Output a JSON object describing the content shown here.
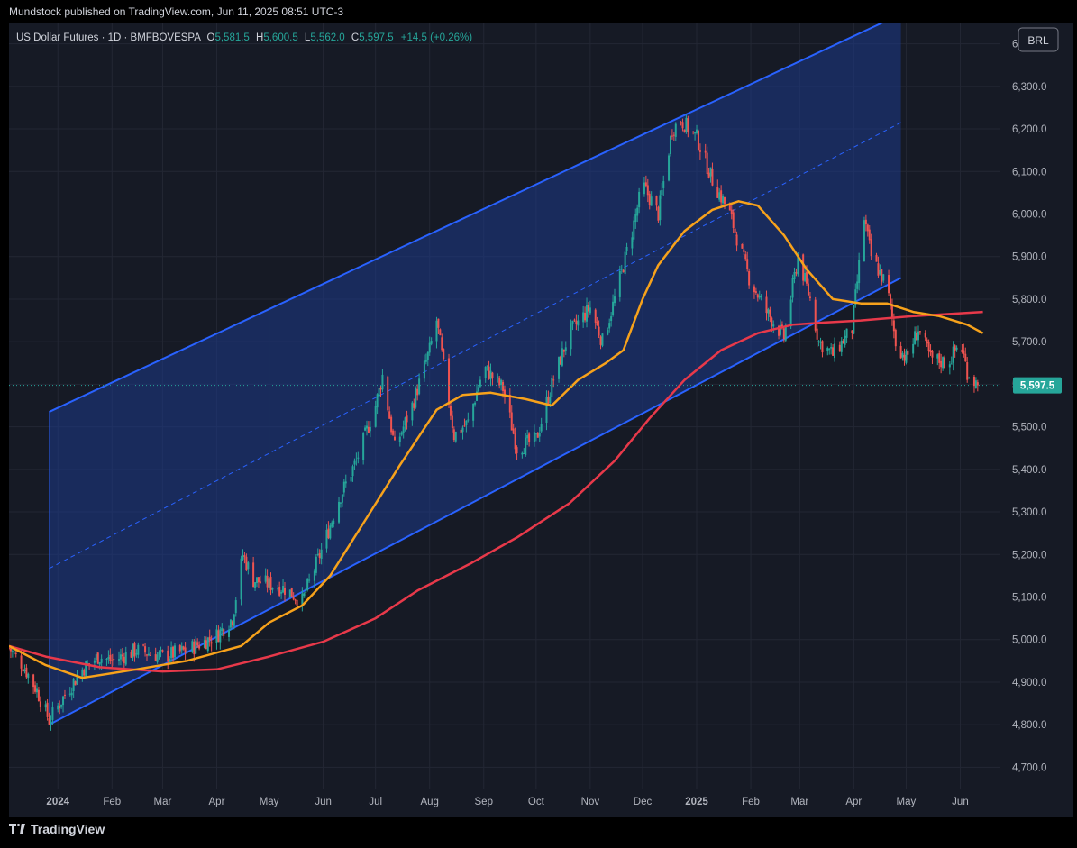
{
  "header": {
    "published": "Mundstock published on TradingView.com, Jun 11, 2025 08:51 UTC-3"
  },
  "legend": {
    "symbol": "US Dollar Futures · 1D · BMFBOVESPA",
    "o_label": "O",
    "o_value": "5,581.5",
    "h_label": "H",
    "h_value": "5,600.5",
    "l_label": "L",
    "l_value": "5,562.0",
    "c_label": "C",
    "c_value": "5,597.5",
    "change": "+14.5 (+0.26%)"
  },
  "currency_badge": "BRL",
  "last_price_label": "5,597.5",
  "footer": {
    "brand": "TradingView"
  },
  "colors": {
    "background": "#161a25",
    "up": "#26a69a",
    "down": "#ef5350",
    "ma_short": "#f7a21b",
    "ma_long": "#e8394a",
    "channel": "#2962ff",
    "channel_fill": "#1e3a8a"
  },
  "chart_data": {
    "type": "candlestick",
    "ylim": [
      4650,
      6450
    ],
    "y_ticks": [
      "4,700.0",
      "4,800.0",
      "4,900.0",
      "5,000.0",
      "5,100.0",
      "5,200.0",
      "5,300.0",
      "5,400.0",
      "5,500.0",
      "5,600.0",
      "5,700.0",
      "5,800.0",
      "5,900.0",
      "6,000.0",
      "6,100.0",
      "6,200.0",
      "6,300.0",
      "6,400.0"
    ],
    "y_tick_values": [
      4700,
      4800,
      4900,
      5000,
      5100,
      5200,
      5300,
      5400,
      5500,
      5600,
      5700,
      5800,
      5900,
      6000,
      6100,
      6200,
      6300,
      6400
    ],
    "x_ticks": [
      "2024",
      "Feb",
      "Mar",
      "Apr",
      "May",
      "Jun",
      "Jul",
      "Aug",
      "Sep",
      "Oct",
      "Nov",
      "Dec",
      "2025",
      "Feb",
      "Mar",
      "Apr",
      "May",
      "Jun"
    ],
    "x_tick_dates": [
      "2024-01-01",
      "2024-02-01",
      "2024-03-01",
      "2024-04-01",
      "2024-05-01",
      "2024-06-01",
      "2024-07-01",
      "2024-08-01",
      "2024-09-01",
      "2024-10-01",
      "2024-11-01",
      "2024-12-01",
      "2025-01-01",
      "2025-02-01",
      "2025-03-01",
      "2025-04-01",
      "2025-05-01",
      "2025-06-01"
    ],
    "x_range": [
      "2023-12-04",
      "2025-06-24"
    ],
    "close_path": [
      [
        "2023-12-04",
        4980
      ],
      [
        "2023-12-12",
        4940
      ],
      [
        "2023-12-20",
        4880
      ],
      [
        "2023-12-27",
        4810
      ],
      [
        "2024-01-05",
        4870
      ],
      [
        "2024-01-15",
        4930
      ],
      [
        "2024-01-24",
        4960
      ],
      [
        "2024-02-01",
        4950
      ],
      [
        "2024-02-15",
        4975
      ],
      [
        "2024-03-01",
        4960
      ],
      [
        "2024-03-15",
        4975
      ],
      [
        "2024-04-01",
        5010
      ],
      [
        "2024-04-10",
        5050
      ],
      [
        "2024-04-16",
        5200
      ],
      [
        "2024-04-22",
        5140
      ],
      [
        "2024-05-01",
        5130
      ],
      [
        "2024-05-10",
        5120
      ],
      [
        "2024-05-20",
        5090
      ],
      [
        "2024-06-01",
        5220
      ],
      [
        "2024-06-10",
        5330
      ],
      [
        "2024-06-20",
        5420
      ],
      [
        "2024-07-01",
        5550
      ],
      [
        "2024-07-05",
        5620
      ],
      [
        "2024-07-12",
        5450
      ],
      [
        "2024-07-22",
        5550
      ],
      [
        "2024-08-01",
        5680
      ],
      [
        "2024-08-05",
        5750
      ],
      [
        "2024-08-15",
        5480
      ],
      [
        "2024-08-23",
        5510
      ],
      [
        "2024-09-01",
        5640
      ],
      [
        "2024-09-12",
        5590
      ],
      [
        "2024-09-20",
        5450
      ],
      [
        "2024-10-01",
        5470
      ],
      [
        "2024-10-10",
        5600
      ],
      [
        "2024-10-20",
        5720
      ],
      [
        "2024-11-01",
        5780
      ],
      [
        "2024-11-08",
        5700
      ],
      [
        "2024-11-15",
        5800
      ],
      [
        "2024-11-25",
        5960
      ],
      [
        "2024-12-01",
        6070
      ],
      [
        "2024-12-10",
        6000
      ],
      [
        "2024-12-18",
        6200
      ],
      [
        "2024-12-23",
        6220
      ],
      [
        "2025-01-01",
        6180
      ],
      [
        "2025-01-10",
        6080
      ],
      [
        "2025-01-20",
        6000
      ],
      [
        "2025-01-31",
        5850
      ],
      [
        "2025-02-10",
        5770
      ],
      [
        "2025-02-20",
        5710
      ],
      [
        "2025-02-28",
        5900
      ],
      [
        "2025-03-07",
        5800
      ],
      [
        "2025-03-12",
        5700
      ],
      [
        "2025-03-20",
        5670
      ],
      [
        "2025-03-31",
        5730
      ],
      [
        "2025-04-07",
        5990
      ],
      [
        "2025-04-11",
        5900
      ],
      [
        "2025-04-20",
        5830
      ],
      [
        "2025-04-25",
        5700
      ],
      [
        "2025-05-01",
        5660
      ],
      [
        "2025-05-08",
        5730
      ],
      [
        "2025-05-15",
        5660
      ],
      [
        "2025-05-25",
        5650
      ],
      [
        "2025-06-01",
        5700
      ],
      [
        "2025-06-05",
        5630
      ],
      [
        "2025-06-11",
        5597.5
      ]
    ],
    "ma_short": [
      [
        "2023-12-04",
        4985
      ],
      [
        "2023-12-25",
        4940
      ],
      [
        "2024-01-15",
        4910
      ],
      [
        "2024-02-15",
        4930
      ],
      [
        "2024-03-15",
        4950
      ],
      [
        "2024-04-15",
        4985
      ],
      [
        "2024-05-01",
        5040
      ],
      [
        "2024-05-20",
        5080
      ],
      [
        "2024-06-05",
        5150
      ],
      [
        "2024-06-25",
        5280
      ],
      [
        "2024-07-15",
        5410
      ],
      [
        "2024-08-05",
        5540
      ],
      [
        "2024-08-20",
        5575
      ],
      [
        "2024-09-05",
        5580
      ],
      [
        "2024-09-25",
        5565
      ],
      [
        "2024-10-10",
        5550
      ],
      [
        "2024-10-25",
        5610
      ],
      [
        "2024-11-10",
        5650
      ],
      [
        "2024-11-20",
        5680
      ],
      [
        "2024-12-01",
        5800
      ],
      [
        "2024-12-10",
        5880
      ],
      [
        "2024-12-25",
        5960
      ],
      [
        "2025-01-10",
        6010
      ],
      [
        "2025-01-25",
        6030
      ],
      [
        "2025-02-05",
        6020
      ],
      [
        "2025-02-20",
        5950
      ],
      [
        "2025-03-05",
        5870
      ],
      [
        "2025-03-20",
        5800
      ],
      [
        "2025-04-05",
        5790
      ],
      [
        "2025-04-20",
        5790
      ],
      [
        "2025-05-05",
        5770
      ],
      [
        "2025-05-20",
        5760
      ],
      [
        "2025-06-05",
        5740
      ],
      [
        "2025-06-14",
        5720
      ]
    ],
    "ma_long": [
      [
        "2023-12-04",
        4985
      ],
      [
        "2023-12-25",
        4960
      ],
      [
        "2024-01-25",
        4935
      ],
      [
        "2024-03-01",
        4925
      ],
      [
        "2024-04-01",
        4930
      ],
      [
        "2024-05-01",
        4960
      ],
      [
        "2024-06-01",
        4995
      ],
      [
        "2024-07-01",
        5050
      ],
      [
        "2024-07-25",
        5115
      ],
      [
        "2024-08-25",
        5180
      ],
      [
        "2024-09-20",
        5240
      ],
      [
        "2024-10-20",
        5320
      ],
      [
        "2024-11-15",
        5420
      ],
      [
        "2024-12-05",
        5520
      ],
      [
        "2024-12-25",
        5610
      ],
      [
        "2025-01-15",
        5680
      ],
      [
        "2025-02-05",
        5720
      ],
      [
        "2025-02-25",
        5740
      ],
      [
        "2025-03-15",
        5745
      ],
      [
        "2025-04-05",
        5750
      ],
      [
        "2025-05-05",
        5760
      ],
      [
        "2025-06-14",
        5770
      ]
    ],
    "channel": {
      "upper": [
        [
          "2023-12-27",
          5535
        ],
        [
          "2025-04-28",
          6470
        ]
      ],
      "lower": [
        [
          "2023-12-27",
          4800
        ],
        [
          "2025-04-28",
          5850
        ]
      ],
      "mid": [
        [
          "2023-12-27",
          5167
        ],
        [
          "2025-04-28",
          6215
        ]
      ],
      "shade_from": "2023-12-27",
      "shade_to": "2025-04-28"
    },
    "last_price": 5597.5
  }
}
